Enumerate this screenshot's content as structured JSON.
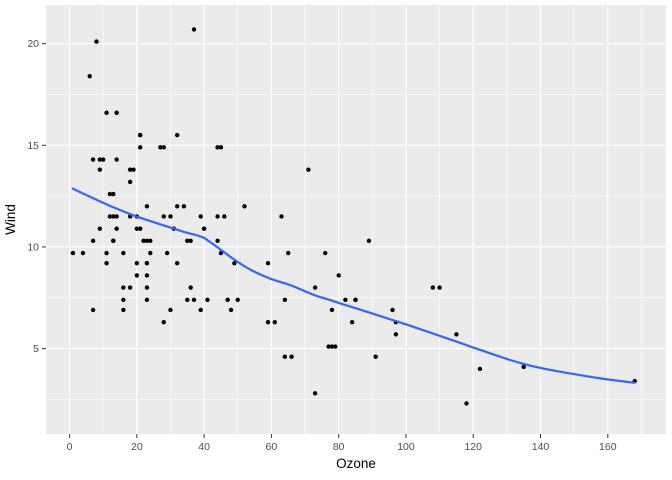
{
  "figure": {
    "background": "#FFFFFF",
    "panel_background": "#EBEBEB",
    "grid_major_color": "#FFFFFF",
    "grid_minor_color": "#FFFFFF",
    "tick_mark_color": "#333333",
    "tick_label_color": "#4D4D4D",
    "axis_title_color": "#000000"
  },
  "chart_data": {
    "type": "scatter",
    "title": "",
    "xlabel": "Ozone",
    "ylabel": "Wind",
    "xlim": [
      -7,
      177.3
    ],
    "ylim": [
      0.8,
      21.9
    ],
    "x_ticks": [
      0,
      20,
      40,
      60,
      80,
      100,
      120,
      140,
      160
    ],
    "x_tick_labels": [
      "0",
      "20",
      "40",
      "60",
      "80",
      "100",
      "120",
      "140",
      "160"
    ],
    "x_minor_ticks": [
      10,
      30,
      50,
      70,
      90,
      110,
      130,
      150,
      170
    ],
    "y_ticks": [
      5,
      10,
      15,
      20
    ],
    "y_tick_labels": [
      "5",
      "10",
      "15",
      "20"
    ],
    "y_minor_ticks": [
      2.5,
      7.5,
      12.5,
      17.5
    ],
    "grid": true,
    "legend_position": "none",
    "series": [
      {
        "name": "points",
        "type": "scatter",
        "color": "#000000",
        "point_radius": 2.2,
        "data": [
          [
            41,
            7.4
          ],
          [
            36,
            8.0
          ],
          [
            12,
            12.6
          ],
          [
            18,
            11.5
          ],
          [
            28,
            14.9
          ],
          [
            23,
            8.6
          ],
          [
            19,
            13.8
          ],
          [
            8,
            20.1
          ],
          [
            7,
            6.9
          ],
          [
            16,
            9.7
          ],
          [
            11,
            9.2
          ],
          [
            14,
            10.9
          ],
          [
            18,
            13.2
          ],
          [
            14,
            11.5
          ],
          [
            34,
            12.0
          ],
          [
            6,
            18.4
          ],
          [
            30,
            11.5
          ],
          [
            11,
            9.7
          ],
          [
            1,
            9.7
          ],
          [
            11,
            16.6
          ],
          [
            4,
            9.7
          ],
          [
            32,
            12.0
          ],
          [
            23,
            12.0
          ],
          [
            45,
            14.9
          ],
          [
            115,
            5.7
          ],
          [
            37,
            7.4
          ],
          [
            29,
            9.7
          ],
          [
            71,
            13.8
          ],
          [
            39,
            11.5
          ],
          [
            23,
            8.0
          ],
          [
            21,
            14.9
          ],
          [
            37,
            20.7
          ],
          [
            20,
            9.2
          ],
          [
            12,
            11.5
          ],
          [
            13,
            10.3
          ],
          [
            135,
            4.1
          ],
          [
            49,
            9.2
          ],
          [
            32,
            9.2
          ],
          [
            64,
            4.6
          ],
          [
            40,
            10.9
          ],
          [
            77,
            5.1
          ],
          [
            97,
            6.3
          ],
          [
            97,
            5.7
          ],
          [
            85,
            7.4
          ],
          [
            10,
            14.3
          ],
          [
            27,
            14.9
          ],
          [
            7,
            14.3
          ],
          [
            48,
            6.9
          ],
          [
            35,
            10.3
          ],
          [
            61,
            6.3
          ],
          [
            79,
            5.1
          ],
          [
            63,
            11.5
          ],
          [
            16,
            6.9
          ],
          [
            80,
            8.6
          ],
          [
            108,
            8.0
          ],
          [
            20,
            8.6
          ],
          [
            52,
            12.0
          ],
          [
            82,
            7.4
          ],
          [
            50,
            7.4
          ],
          [
            64,
            7.4
          ],
          [
            59,
            9.2
          ],
          [
            39,
            6.9
          ],
          [
            9,
            13.8
          ],
          [
            16,
            7.4
          ],
          [
            78,
            6.9
          ],
          [
            35,
            7.4
          ],
          [
            66,
            4.6
          ],
          [
            122,
            4.0
          ],
          [
            89,
            10.3
          ],
          [
            110,
            8.0
          ],
          [
            44,
            11.5
          ],
          [
            28,
            11.5
          ],
          [
            65,
            9.7
          ],
          [
            22,
            10.3
          ],
          [
            59,
            6.3
          ],
          [
            23,
            7.4
          ],
          [
            31,
            10.9
          ],
          [
            44,
            10.3
          ],
          [
            21,
            15.5
          ],
          [
            9,
            14.3
          ],
          [
            45,
            9.7
          ],
          [
            168,
            3.4
          ],
          [
            73,
            8.0
          ],
          [
            76,
            9.7
          ],
          [
            118,
            2.3
          ],
          [
            84,
            6.3
          ],
          [
            85,
            7.4
          ],
          [
            96,
            6.9
          ],
          [
            78,
            5.1
          ],
          [
            73,
            2.8
          ],
          [
            91,
            4.6
          ],
          [
            47,
            7.4
          ],
          [
            32,
            15.5
          ],
          [
            20,
            10.9
          ],
          [
            23,
            10.3
          ],
          [
            21,
            10.9
          ],
          [
            24,
            9.7
          ],
          [
            44,
            14.9
          ],
          [
            21,
            15.5
          ],
          [
            28,
            6.3
          ],
          [
            9,
            10.9
          ],
          [
            13,
            11.5
          ],
          [
            46,
            11.5
          ],
          [
            18,
            13.8
          ],
          [
            13,
            10.3
          ],
          [
            24,
            10.3
          ],
          [
            16,
            8.0
          ],
          [
            13,
            12.6
          ],
          [
            23,
            9.2
          ],
          [
            36,
            10.3
          ],
          [
            7,
            10.3
          ],
          [
            14,
            16.6
          ],
          [
            30,
            6.9
          ],
          [
            14,
            14.3
          ],
          [
            18,
            8.0
          ],
          [
            20,
            11.5
          ]
        ]
      },
      {
        "name": "loess-smooth",
        "type": "line",
        "color": "#3366FF",
        "line_width": 2.2,
        "data": [
          [
            1,
            12.87
          ],
          [
            4,
            12.63
          ],
          [
            8,
            12.32
          ],
          [
            12,
            12.02
          ],
          [
            16,
            11.75
          ],
          [
            20,
            11.49
          ],
          [
            24,
            11.27
          ],
          [
            28,
            11.06
          ],
          [
            31,
            10.9
          ],
          [
            34,
            10.74
          ],
          [
            36,
            10.65
          ],
          [
            38,
            10.57
          ],
          [
            40,
            10.45
          ],
          [
            42,
            10.22
          ],
          [
            44,
            9.98
          ],
          [
            46,
            9.73
          ],
          [
            48,
            9.49
          ],
          [
            50,
            9.26
          ],
          [
            52,
            9.05
          ],
          [
            54,
            8.86
          ],
          [
            56,
            8.7
          ],
          [
            58,
            8.55
          ],
          [
            60,
            8.42
          ],
          [
            62,
            8.31
          ],
          [
            64,
            8.21
          ],
          [
            66,
            8.1
          ],
          [
            68,
            7.96
          ],
          [
            70,
            7.82
          ],
          [
            72,
            7.68
          ],
          [
            74,
            7.56
          ],
          [
            76,
            7.46
          ],
          [
            78,
            7.36
          ],
          [
            80,
            7.25
          ],
          [
            83,
            7.09
          ],
          [
            86,
            6.94
          ],
          [
            89,
            6.78
          ],
          [
            92,
            6.62
          ],
          [
            95,
            6.46
          ],
          [
            98,
            6.3
          ],
          [
            101,
            6.14
          ],
          [
            104,
            5.97
          ],
          [
            107,
            5.8
          ],
          [
            110,
            5.63
          ],
          [
            113,
            5.46
          ],
          [
            116,
            5.29
          ],
          [
            119,
            5.11
          ],
          [
            122,
            4.94
          ],
          [
            125,
            4.77
          ],
          [
            128,
            4.6
          ],
          [
            131,
            4.44
          ],
          [
            134,
            4.29
          ],
          [
            137,
            4.16
          ],
          [
            140,
            4.05
          ],
          [
            143,
            3.95
          ],
          [
            146,
            3.86
          ],
          [
            149,
            3.77
          ],
          [
            152,
            3.69
          ],
          [
            155,
            3.61
          ],
          [
            158,
            3.53
          ],
          [
            161,
            3.46
          ],
          [
            164,
            3.4
          ],
          [
            166,
            3.36
          ],
          [
            168,
            3.32
          ]
        ]
      }
    ]
  }
}
